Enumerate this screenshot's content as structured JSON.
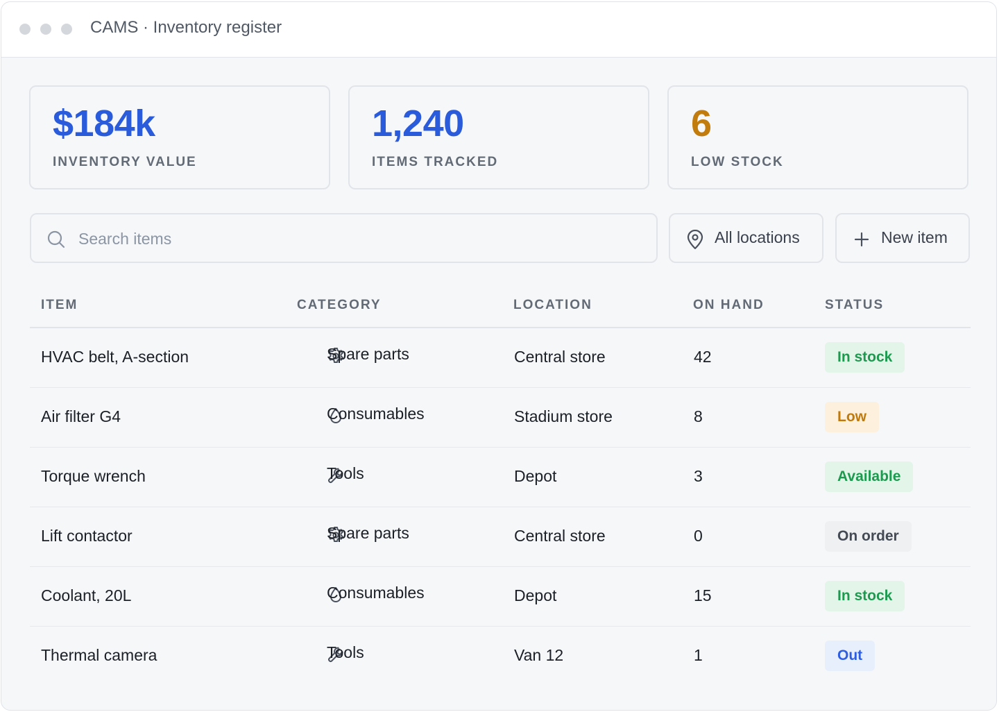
{
  "window": {
    "title": "CAMS · Inventory register"
  },
  "stats": [
    {
      "value": "$184k",
      "label": "INVENTORY VALUE",
      "color": "#2a5bdb"
    },
    {
      "value": "1,240",
      "label": "ITEMS TRACKED",
      "color": "#2a5bdb"
    },
    {
      "value": "6",
      "label": "LOW STOCK",
      "color": "#c27c0e"
    }
  ],
  "toolbar": {
    "search_placeholder": "Search items",
    "search_icon": "search-icon",
    "location_label": "All locations",
    "location_icon": "map-pin-icon",
    "new_item_label": "New item",
    "new_item_icon": "plus-icon"
  },
  "table": {
    "columns": [
      "ITEM",
      "CATEGORY",
      "LOCATION",
      "ON HAND",
      "STATUS"
    ],
    "rows": [
      {
        "item": "HVAC belt, A-section",
        "category": "Spare parts",
        "category_icon": "gear-icon",
        "location": "Central store",
        "on_hand": "42",
        "status": "In stock",
        "status_tone": "green"
      },
      {
        "item": "Air filter G4",
        "category": "Consumables",
        "category_icon": "droplet-icon",
        "location": "Stadium store",
        "on_hand": "8",
        "status": "Low",
        "status_tone": "amber"
      },
      {
        "item": "Torque wrench",
        "category": "Tools",
        "category_icon": "wrench-icon",
        "location": "Depot",
        "on_hand": "3",
        "status": "Available",
        "status_tone": "green"
      },
      {
        "item": "Lift contactor",
        "category": "Spare parts",
        "category_icon": "gear-icon",
        "location": "Central store",
        "on_hand": "0",
        "status": "On order",
        "status_tone": "gray"
      },
      {
        "item": "Coolant, 20L",
        "category": "Consumables",
        "category_icon": "droplet-icon",
        "location": "Depot",
        "on_hand": "15",
        "status": "In stock",
        "status_tone": "green"
      },
      {
        "item": "Thermal camera",
        "category": "Tools",
        "category_icon": "wrench-icon",
        "location": "Van 12",
        "on_hand": "1",
        "status": "Out",
        "status_tone": "blue"
      }
    ]
  }
}
